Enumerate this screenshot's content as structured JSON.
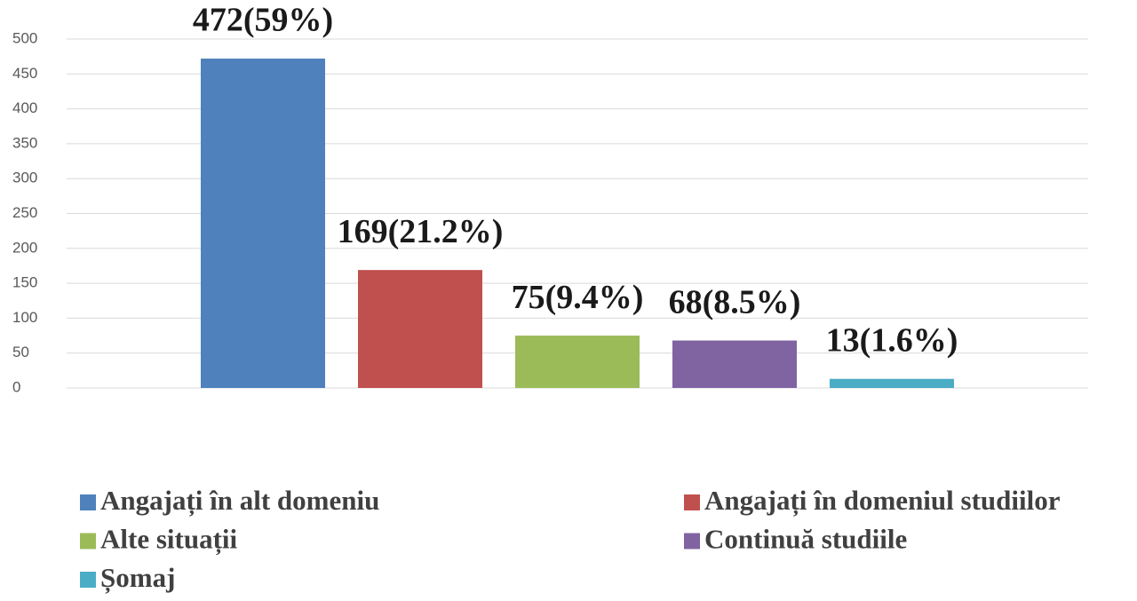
{
  "chart_data": {
    "type": "bar",
    "categories": [
      null
    ],
    "series": [
      {
        "name": "Angajați în alt domeniu",
        "color": "#4f81bd",
        "values": [
          472
        ],
        "value_labels": [
          "472(59%)"
        ]
      },
      {
        "name": "Angajați în domeniul studiilor",
        "color": "#c0504d",
        "values": [
          169
        ],
        "value_labels": [
          "169(21.2%)"
        ]
      },
      {
        "name": "Alte situații",
        "color": "#9bbb59",
        "values": [
          75
        ],
        "value_labels": [
          "75(9.4%)"
        ]
      },
      {
        "name": "Continuă studiile",
        "color": "#8064a2",
        "values": [
          68
        ],
        "value_labels": [
          "68(8.5%)"
        ]
      },
      {
        "name": "Șomaj",
        "color": "#4bacc6",
        "values": [
          13
        ],
        "value_labels": [
          "13(1.6%)"
        ]
      }
    ],
    "ylim": [
      0,
      500
    ],
    "yticks": [
      0,
      50,
      100,
      150,
      200,
      250,
      300,
      350,
      400,
      450,
      500
    ],
    "grid": true,
    "legend": "bottom"
  }
}
